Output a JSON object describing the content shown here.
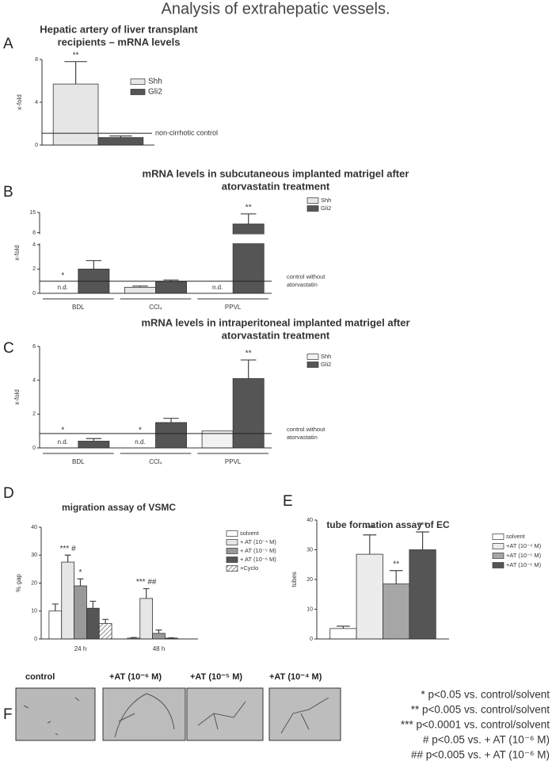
{
  "title": "Analysis of extrahepatic vessels.",
  "panel_labels": [
    "A",
    "B",
    "C",
    "D",
    "E",
    "F"
  ],
  "chart_data": [
    {
      "type": "bar",
      "title": [
        "Hepatic artery of liver transplant",
        "recipients – mRNA levels"
      ],
      "ylabel": "x-fold",
      "ylim": [
        0,
        8
      ],
      "yticks": [
        0,
        4,
        8
      ],
      "categories": [
        null
      ],
      "series": [
        {
          "name": "Shh",
          "color": "#e6e6e6",
          "values": [
            5.7
          ],
          "errors": [
            2.1
          ],
          "significance": [
            "**"
          ]
        },
        {
          "name": "Gli2",
          "color": "#555555",
          "values": [
            0.7
          ],
          "errors": [
            0.15
          ]
        }
      ],
      "reference": {
        "value": 1.1,
        "label": [
          "non-cirrhotic control"
        ]
      }
    },
    {
      "type": "bar",
      "title": [
        "mRNA levels in subcutaneous implanted matrigel after",
        "atorvastatin treatment"
      ],
      "ylabel": "x-fold",
      "ylim": [
        0,
        15
      ],
      "ybreak": [
        4,
        8
      ],
      "yticks": [
        0,
        2,
        4,
        8,
        15
      ],
      "categories": [
        "BDL",
        "CCl₄",
        "PPVL"
      ],
      "series": [
        {
          "name": "Shh",
          "color": "#e6e6e6",
          "values": [
            null,
            0.5,
            null
          ],
          "value_labels": [
            "n.d.",
            null,
            "n.d."
          ],
          "errors": [
            null,
            0.1,
            null
          ],
          "significance": [
            "*",
            null,
            null
          ]
        },
        {
          "name": "Gli2",
          "color": "#555555",
          "values": [
            2.0,
            0.95,
            11
          ],
          "errors": [
            0.7,
            0.15,
            3.5
          ],
          "significance": [
            null,
            null,
            "**"
          ]
        }
      ],
      "reference": {
        "value": 1.0,
        "label": [
          "control without",
          "atorvastatin"
        ]
      }
    },
    {
      "type": "bar",
      "title": [
        "mRNA levels in intraperitoneal implanted matrigel after",
        "atorvastatin treatment"
      ],
      "ylabel": "x-fold",
      "ylim": [
        0,
        6
      ],
      "yticks": [
        0,
        2,
        4,
        6
      ],
      "categories": [
        "BDL",
        "CCl₄",
        "PPVL"
      ],
      "series": [
        {
          "name": "Shh",
          "color": "#f2f2f2",
          "values": [
            null,
            null,
            1.0
          ],
          "value_labels": [
            "n.d.",
            "n.d.",
            null
          ],
          "significance": [
            "*",
            "*",
            null
          ]
        },
        {
          "name": "Gli2",
          "color": "#555555",
          "values": [
            0.4,
            1.5,
            4.1
          ],
          "errors": [
            0.15,
            0.25,
            1.1
          ],
          "significance": [
            null,
            null,
            "**"
          ]
        }
      ],
      "reference": {
        "value": 0.85,
        "label": [
          "control without",
          "atorvastatin"
        ]
      }
    },
    {
      "type": "bar",
      "title": [
        "migration assay of VSMC"
      ],
      "ylabel": "% gap",
      "ylim": [
        0,
        40
      ],
      "yticks": [
        0,
        10,
        20,
        30,
        40
      ],
      "categories": [
        "24 h",
        "48 h"
      ],
      "series": [
        {
          "name": "solvent",
          "color": "#ffffff",
          "values": [
            10,
            0.3
          ],
          "errors": [
            2.5,
            0.2
          ]
        },
        {
          "name": "+ AT (10⁻⁴ M)",
          "color": "#e6e6e6",
          "values": [
            27.5,
            14.5
          ],
          "errors": [
            2.5,
            3.5
          ],
          "significance": [
            "*** #",
            "*** ##"
          ]
        },
        {
          "name": "+ AT (10⁻⁵ M)",
          "color": "#999999",
          "values": [
            19,
            2
          ],
          "errors": [
            2.5,
            1.2
          ],
          "significance": [
            "*",
            null
          ]
        },
        {
          "name": "+ AT (10⁻⁶ M)",
          "color": "#555555",
          "values": [
            11,
            0.3
          ],
          "errors": [
            2.5,
            0.1
          ]
        },
        {
          "name": "+Cyclo",
          "color": "#ffffff",
          "hatch": true,
          "values": [
            5.5,
            null
          ],
          "errors": [
            1.5,
            null
          ]
        }
      ]
    },
    {
      "type": "bar",
      "title": [
        "tube formation assay of EC"
      ],
      "ylabel": "tubes",
      "ylim": [
        0,
        40
      ],
      "yticks": [
        0,
        10,
        20,
        30,
        40
      ],
      "categories": [
        null
      ],
      "series": [
        {
          "name": "solvent",
          "color": "#ffffff",
          "values": [
            3.5
          ],
          "errors": [
            0.8
          ]
        },
        {
          "name": "+AT (10⁻⁴ M)",
          "color": "#ececec",
          "values": [
            28.5
          ],
          "errors": [
            6.5
          ],
          "significance": [
            "***"
          ]
        },
        {
          "name": "+AT (10⁻⁵ M)",
          "color": "#a6a6a6",
          "values": [
            18.5
          ],
          "errors": [
            4.5
          ],
          "significance": [
            "**"
          ]
        },
        {
          "name": "+AT (10⁻⁶ M)",
          "color": "#555555",
          "values": [
            30
          ],
          "errors": [
            6
          ],
          "significance": [
            "***"
          ]
        }
      ]
    }
  ],
  "micrographs": {
    "labels": [
      "control",
      "+AT (10⁻⁶ M)",
      "+AT (10⁻⁵ M)",
      "+AT (10⁻⁴ M)"
    ]
  },
  "footnotes": [
    "* p<0.05 vs. control/solvent",
    "** p<0.005 vs. control/solvent",
    "*** p<0.0001 vs. control/solvent",
    "# p<0.05 vs. + AT (10⁻⁶ M)",
    "## p<0.005 vs. + AT (10⁻⁶ M)"
  ]
}
